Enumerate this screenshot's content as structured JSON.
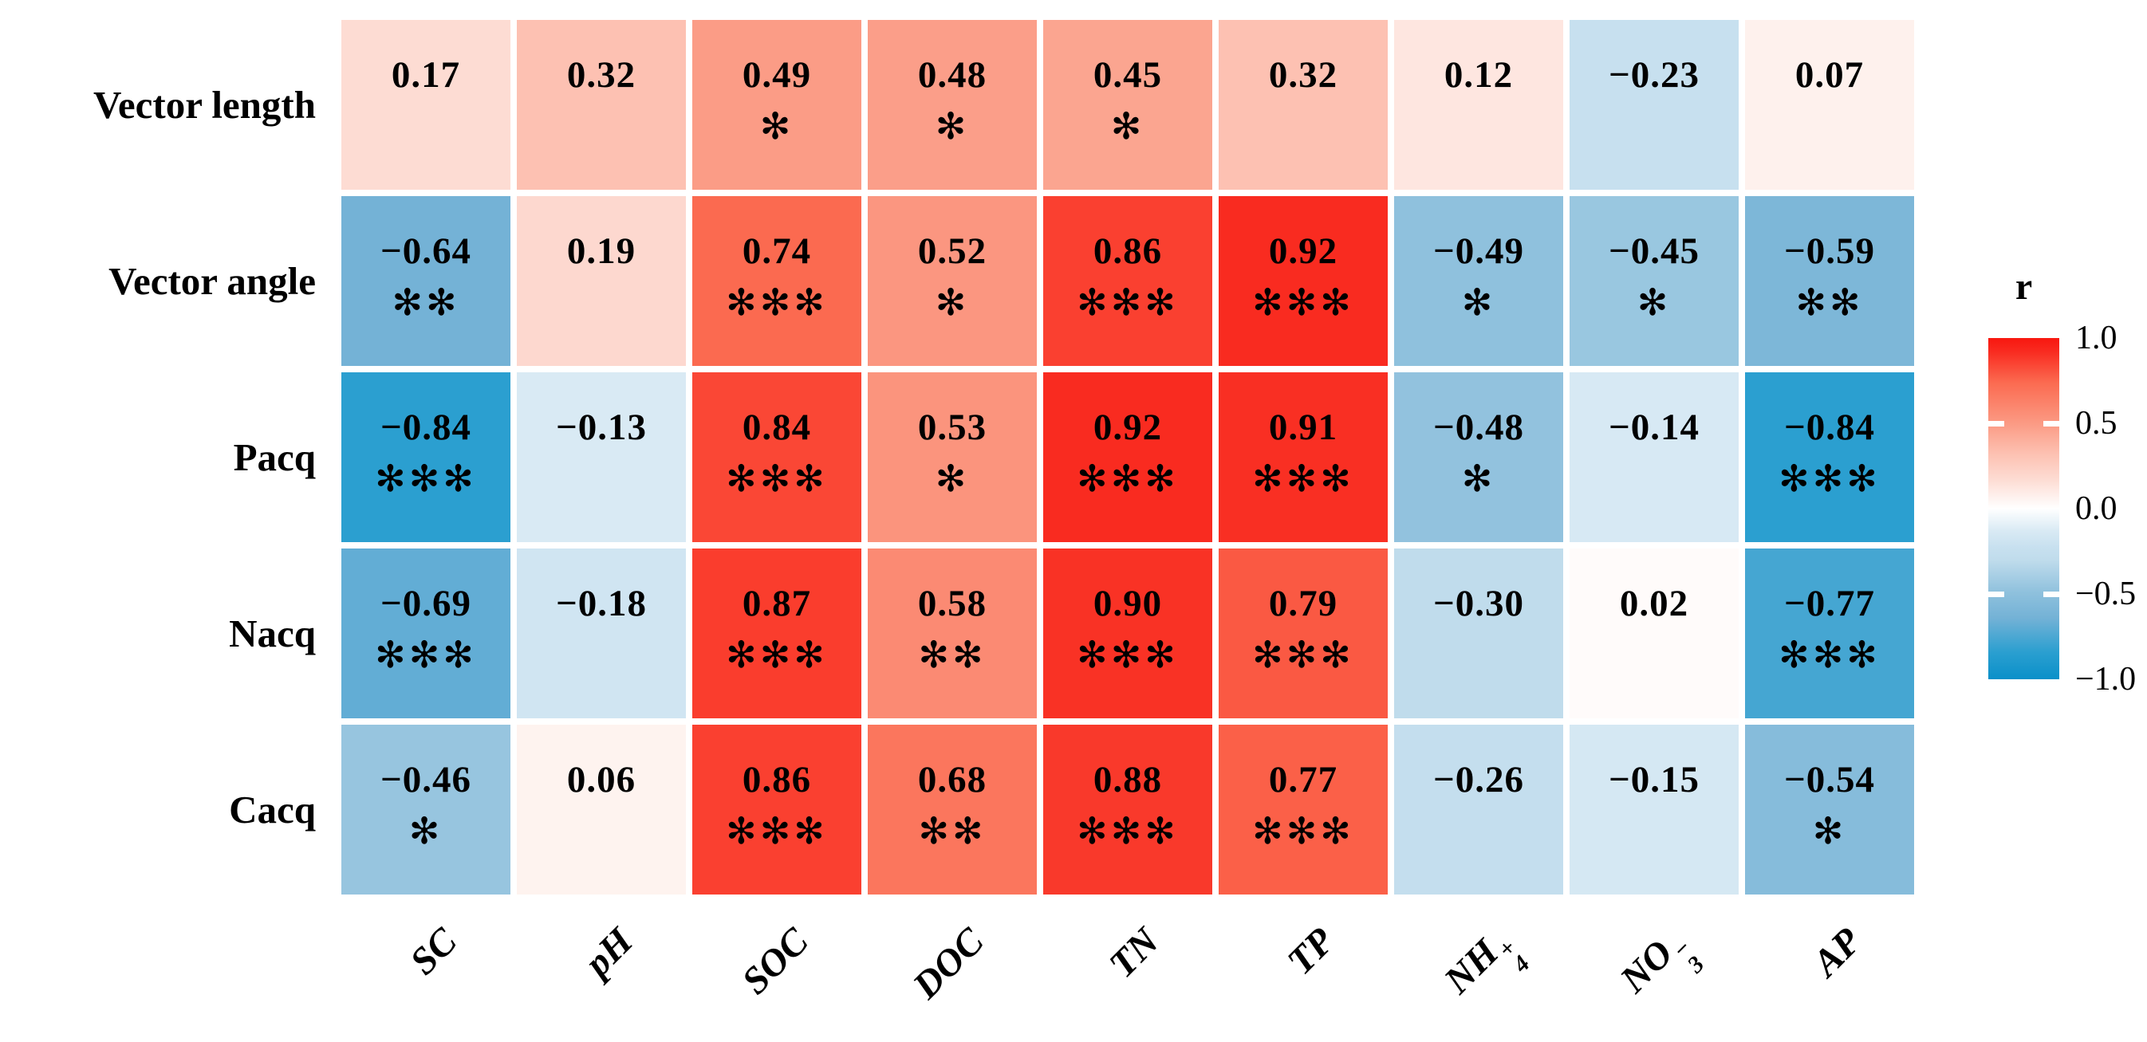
{
  "figure": {
    "background": "#ffffff",
    "text_color": "#000000"
  },
  "chart_data": {
    "type": "heatmap",
    "title": "",
    "rows": [
      "Vector length",
      "Vector angle",
      "Pacq",
      "Nacq",
      "Cacq"
    ],
    "columns": [
      {
        "text": "SC"
      },
      {
        "text": "pH"
      },
      {
        "text": "SOC"
      },
      {
        "text": "DOC"
      },
      {
        "text": "TN"
      },
      {
        "text": "TP"
      },
      {
        "text": "NH",
        "sub": "4",
        "sup": "+"
      },
      {
        "text": "NO",
        "sub": "3",
        "sup": "−"
      },
      {
        "text": "AP"
      }
    ],
    "cells": [
      [
        {
          "v": 0.17,
          "label": "0.17",
          "stars": ""
        },
        {
          "v": 0.32,
          "label": "0.32",
          "stars": ""
        },
        {
          "v": 0.49,
          "label": "0.49",
          "stars": "✻"
        },
        {
          "v": 0.48,
          "label": "0.48",
          "stars": "✻"
        },
        {
          "v": 0.45,
          "label": "0.45",
          "stars": "✻"
        },
        {
          "v": 0.32,
          "label": "0.32",
          "stars": ""
        },
        {
          "v": 0.12,
          "label": "0.12",
          "stars": ""
        },
        {
          "v": -0.23,
          "label": "−0.23",
          "stars": ""
        },
        {
          "v": 0.07,
          "label": "0.07",
          "stars": ""
        }
      ],
      [
        {
          "v": -0.64,
          "label": "−0.64",
          "stars": "✻✻"
        },
        {
          "v": 0.19,
          "label": "0.19",
          "stars": ""
        },
        {
          "v": 0.74,
          "label": "0.74",
          "stars": "✻✻✻"
        },
        {
          "v": 0.52,
          "label": "0.52",
          "stars": "✻"
        },
        {
          "v": 0.86,
          "label": "0.86",
          "stars": "✻✻✻"
        },
        {
          "v": 0.92,
          "label": "0.92",
          "stars": "✻✻✻"
        },
        {
          "v": -0.49,
          "label": "−0.49",
          "stars": "✻"
        },
        {
          "v": -0.45,
          "label": "−0.45",
          "stars": "✻"
        },
        {
          "v": -0.59,
          "label": "−0.59",
          "stars": "✻✻"
        }
      ],
      [
        {
          "v": -0.84,
          "label": "−0.84",
          "stars": "✻✻✻"
        },
        {
          "v": -0.13,
          "label": "−0.13",
          "stars": ""
        },
        {
          "v": 0.84,
          "label": "0.84",
          "stars": "✻✻✻"
        },
        {
          "v": 0.53,
          "label": "0.53",
          "stars": "✻"
        },
        {
          "v": 0.92,
          "label": "0.92",
          "stars": "✻✻✻"
        },
        {
          "v": 0.91,
          "label": "0.91",
          "stars": "✻✻✻"
        },
        {
          "v": -0.48,
          "label": "−0.48",
          "stars": "✻"
        },
        {
          "v": -0.14,
          "label": "−0.14",
          "stars": ""
        },
        {
          "v": -0.84,
          "label": "−0.84",
          "stars": "✻✻✻"
        }
      ],
      [
        {
          "v": -0.69,
          "label": "−0.69",
          "stars": "✻✻✻"
        },
        {
          "v": -0.18,
          "label": "−0.18",
          "stars": ""
        },
        {
          "v": 0.87,
          "label": "0.87",
          "stars": "✻✻✻"
        },
        {
          "v": 0.58,
          "label": "0.58",
          "stars": "✻✻"
        },
        {
          "v": 0.9,
          "label": "0.90",
          "stars": "✻✻✻"
        },
        {
          "v": 0.79,
          "label": "0.79",
          "stars": "✻✻✻"
        },
        {
          "v": -0.3,
          "label": "−0.30",
          "stars": ""
        },
        {
          "v": 0.02,
          "label": "0.02",
          "stars": ""
        },
        {
          "v": -0.77,
          "label": "−0.77",
          "stars": "✻✻✻"
        }
      ],
      [
        {
          "v": -0.46,
          "label": "−0.46",
          "stars": "✻"
        },
        {
          "v": 0.06,
          "label": "0.06",
          "stars": ""
        },
        {
          "v": 0.86,
          "label": "0.86",
          "stars": "✻✻✻"
        },
        {
          "v": 0.68,
          "label": "0.68",
          "stars": "✻✻"
        },
        {
          "v": 0.88,
          "label": "0.88",
          "stars": "✻✻✻"
        },
        {
          "v": 0.77,
          "label": "0.77",
          "stars": "✻✻✻"
        },
        {
          "v": -0.26,
          "label": "−0.26",
          "stars": ""
        },
        {
          "v": -0.15,
          "label": "−0.15",
          "stars": ""
        },
        {
          "v": -0.54,
          "label": "−0.54",
          "stars": "✻"
        }
      ]
    ],
    "colorscale": {
      "label": "r",
      "ticks": [
        "1.0",
        "0.5",
        "0.0",
        "−0.5",
        "−1.0"
      ],
      "tick_values": [
        1.0,
        0.5,
        0.0,
        -0.5,
        -1.0
      ],
      "range": [
        -1.0,
        1.0
      ],
      "stops": [
        {
          "v": 1.0,
          "c": "#f8170f"
        },
        {
          "v": 0.92,
          "c": "#f92b20"
        },
        {
          "v": 0.74,
          "c": "#fb6a50"
        },
        {
          "v": 0.49,
          "c": "#fb9c86"
        },
        {
          "v": 0.32,
          "c": "#fdc1b2"
        },
        {
          "v": 0.17,
          "c": "#fddcd3"
        },
        {
          "v": 0.0,
          "c": "#ffffff"
        },
        {
          "v": -0.13,
          "c": "#d9eaf4"
        },
        {
          "v": -0.23,
          "c": "#c7e0ef"
        },
        {
          "v": -0.3,
          "c": "#c0dcec"
        },
        {
          "v": -0.49,
          "c": "#8fc1dd"
        },
        {
          "v": -0.64,
          "c": "#74b2d6"
        },
        {
          "v": -0.84,
          "c": "#2b9fd0"
        },
        {
          "v": -1.0,
          "c": "#0a90c9"
        }
      ]
    },
    "layout_hints": {
      "legend_position": "right",
      "grid": "off",
      "cell_gap_color": "#ffffff"
    }
  }
}
